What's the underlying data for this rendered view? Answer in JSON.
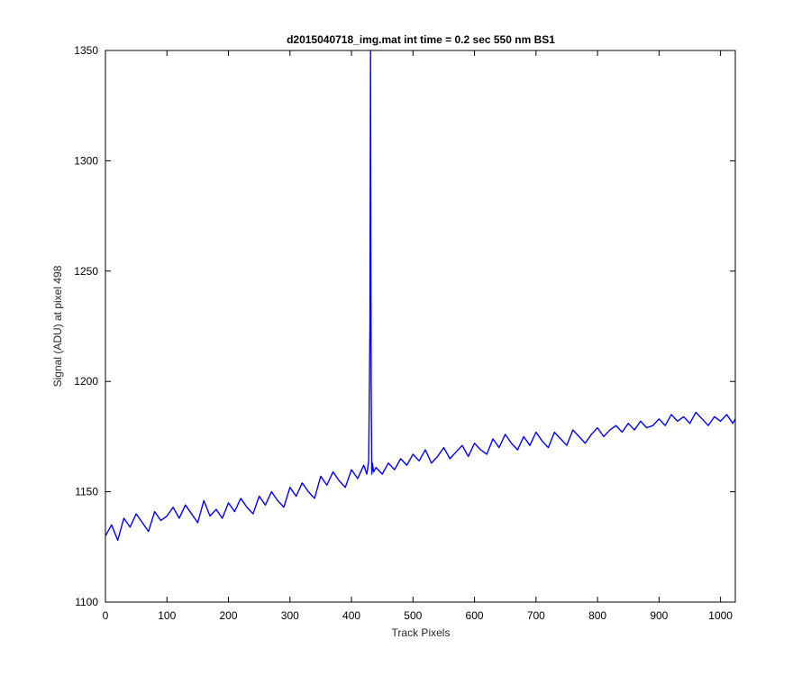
{
  "chart_data": {
    "type": "line",
    "title": "d2015040718_img.mat int time = 0.2 sec  550 nm BS1",
    "xlabel": "Track Pixels",
    "ylabel": "Signal (ADU) at pixel 498",
    "xlim": [
      0,
      1024
    ],
    "ylim": [
      1100,
      1350
    ],
    "xticks": [
      0,
      100,
      200,
      300,
      400,
      500,
      600,
      700,
      800,
      900,
      1000
    ],
    "yticks": [
      1100,
      1150,
      1200,
      1250,
      1300,
      1350
    ],
    "grid": false,
    "line_color": "#0000ff",
    "series": [
      {
        "x": [
          0,
          10,
          20,
          30,
          40,
          50,
          60,
          70,
          80,
          90,
          100,
          110,
          120,
          130,
          140,
          150,
          160,
          170,
          180,
          190,
          200,
          210,
          220,
          230,
          240,
          250,
          260,
          270,
          280,
          290,
          300,
          310,
          320,
          330,
          340,
          350,
          360,
          370,
          380,
          390,
          400,
          410,
          420,
          425,
          428,
          430,
          431,
          432,
          433,
          434,
          436,
          440,
          450,
          460,
          470,
          480,
          490,
          500,
          510,
          520,
          530,
          540,
          550,
          560,
          570,
          580,
          590,
          600,
          610,
          620,
          630,
          640,
          650,
          660,
          670,
          680,
          690,
          700,
          710,
          720,
          730,
          740,
          750,
          760,
          770,
          780,
          790,
          800,
          810,
          820,
          830,
          840,
          850,
          860,
          870,
          880,
          890,
          900,
          910,
          920,
          930,
          940,
          950,
          960,
          970,
          980,
          990,
          1000,
          1010,
          1020,
          1024
        ],
        "values": [
          1130,
          1135,
          1128,
          1138,
          1134,
          1140,
          1136,
          1132,
          1141,
          1137,
          1139,
          1143,
          1138,
          1144,
          1140,
          1136,
          1146,
          1139,
          1142,
          1138,
          1145,
          1141,
          1147,
          1143,
          1140,
          1148,
          1144,
          1150,
          1146,
          1143,
          1152,
          1148,
          1154,
          1150,
          1147,
          1157,
          1153,
          1159,
          1155,
          1152,
          1160,
          1156,
          1162,
          1158,
          1164,
          1225,
          1350,
          1200,
          1158,
          1163,
          1159,
          1161,
          1158,
          1163,
          1160,
          1165,
          1162,
          1167,
          1164,
          1169,
          1163,
          1166,
          1170,
          1165,
          1168,
          1171,
          1166,
          1172,
          1169,
          1167,
          1174,
          1170,
          1176,
          1172,
          1169,
          1175,
          1171,
          1177,
          1173,
          1170,
          1177,
          1174,
          1171,
          1178,
          1175,
          1172,
          1176,
          1179,
          1175,
          1178,
          1180,
          1177,
          1181,
          1178,
          1182,
          1179,
          1180,
          1183,
          1180,
          1185,
          1182,
          1184,
          1181,
          1186,
          1183,
          1180,
          1184,
          1182,
          1185,
          1181,
          1183
        ]
      }
    ]
  }
}
